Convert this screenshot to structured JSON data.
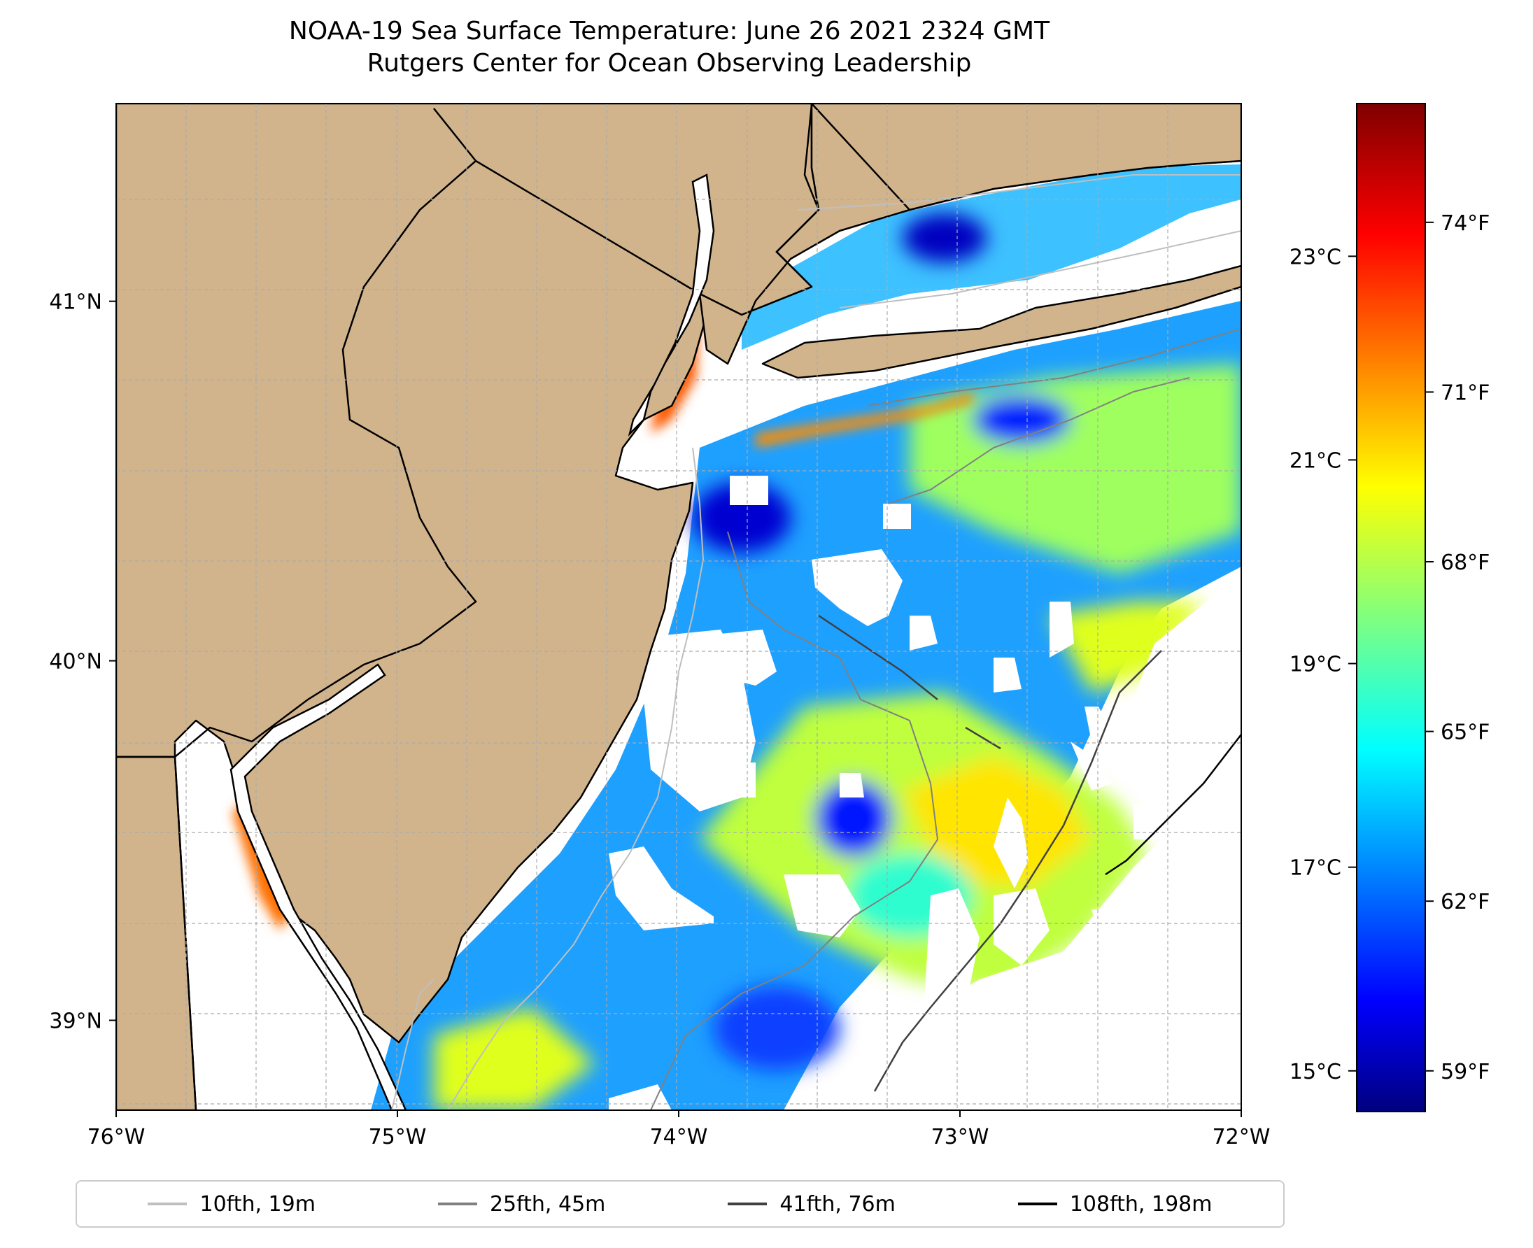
{
  "title": {
    "line1": "NOAA-19 Sea Surface Temperature: June 26 2021 2324 GMT",
    "line2": "Rutgers Center for Ocean Observing Leadership"
  },
  "map": {
    "land_color": "#d2b48c",
    "coast_color": "#000000",
    "grid": true,
    "lon_range": [
      -76,
      -72
    ],
    "lat_range": [
      38.75,
      41.55
    ],
    "lon_ticks": [
      {
        "value": -76,
        "label": "76°W"
      },
      {
        "value": -75,
        "label": "75°W"
      },
      {
        "value": -74,
        "label": "74°W"
      },
      {
        "value": -73,
        "label": "73°W"
      },
      {
        "value": -72,
        "label": "72°W"
      }
    ],
    "lat_ticks": [
      {
        "value": 41,
        "label": "41°N"
      },
      {
        "value": 40,
        "label": "40°N"
      },
      {
        "value": 39,
        "label": "39°N"
      }
    ]
  },
  "colorbar": {
    "colormap": "jet",
    "range_c": [
      14.6,
      24.5
    ],
    "celsius_ticks": [
      {
        "value": 15,
        "label": "15°C"
      },
      {
        "value": 17,
        "label": "17°C"
      },
      {
        "value": 19,
        "label": "19°C"
      },
      {
        "value": 21,
        "label": "21°C"
      },
      {
        "value": 23,
        "label": "23°C"
      }
    ],
    "fahrenheit_ticks": [
      {
        "value": 59,
        "label": "59°F"
      },
      {
        "value": 62,
        "label": "62°F"
      },
      {
        "value": 65,
        "label": "65°F"
      },
      {
        "value": 68,
        "label": "68°F"
      },
      {
        "value": 71,
        "label": "71°F"
      },
      {
        "value": 74,
        "label": "74°F"
      }
    ]
  },
  "legend": {
    "items": [
      {
        "label": "10fth, 19m",
        "color": "#bfbfbf"
      },
      {
        "label": "25fth, 45m",
        "color": "#808080"
      },
      {
        "label": "41fth, 76m",
        "color": "#404040"
      },
      {
        "label": "108fth, 198m",
        "color": "#000000"
      }
    ]
  }
}
